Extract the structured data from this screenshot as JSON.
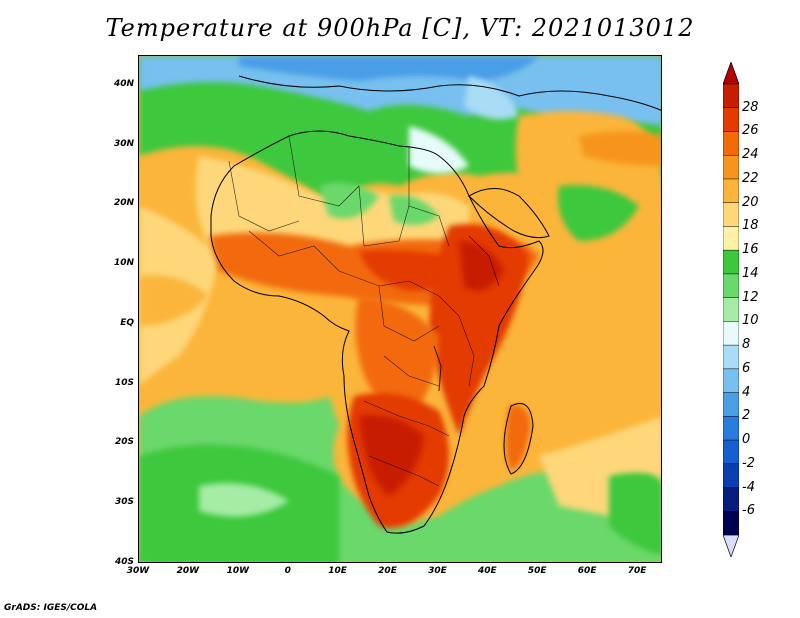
{
  "title": "Temperature at 900hPa [C], VT: 2021013012",
  "credit": "GrADS: IGES/COLA",
  "map": {
    "lon_range": [
      -30,
      75
    ],
    "lat_range": [
      -40,
      45
    ],
    "lat_ticks": [
      {
        "value": 40,
        "label": "40N"
      },
      {
        "value": 30,
        "label": "30N"
      },
      {
        "value": 20,
        "label": "20N"
      },
      {
        "value": 10,
        "label": "10N"
      },
      {
        "value": 0,
        "label": "EQ"
      },
      {
        "value": -10,
        "label": "10S"
      },
      {
        "value": -20,
        "label": "20S"
      },
      {
        "value": -30,
        "label": "30S"
      },
      {
        "value": -40,
        "label": "40S"
      }
    ],
    "lon_ticks": [
      {
        "value": -30,
        "label": "30W"
      },
      {
        "value": -20,
        "label": "20W"
      },
      {
        "value": -10,
        "label": "10W"
      },
      {
        "value": 0,
        "label": "0"
      },
      {
        "value": 10,
        "label": "10E"
      },
      {
        "value": 20,
        "label": "20E"
      },
      {
        "value": 30,
        "label": "30E"
      },
      {
        "value": 40,
        "label": "40E"
      },
      {
        "value": 50,
        "label": "50E"
      },
      {
        "value": 60,
        "label": "60E"
      },
      {
        "value": 70,
        "label": "70E"
      }
    ]
  },
  "colorbar": {
    "labels": [
      "28",
      "26",
      "24",
      "22",
      "20",
      "18",
      "16",
      "14",
      "12",
      "10",
      "8",
      "6",
      "4",
      "2",
      "0",
      "-2",
      "-4",
      "-6"
    ],
    "colors": [
      "#c81e00",
      "#e33b00",
      "#f26a0a",
      "#f7941d",
      "#fbb53a",
      "#fdd77a",
      "#fdf1a8",
      "#3cc83c",
      "#6ad86a",
      "#a6eca6",
      "#e6fbfa",
      "#a9dcf5",
      "#77c0ef",
      "#4a9ee6",
      "#2a7ddc",
      "#165fd0",
      "#0a3fb0",
      "#081c7c",
      "#000050"
    ],
    "top_arrow_color": "#b40000",
    "bottom_arrow_color": "#dcdcff"
  }
}
